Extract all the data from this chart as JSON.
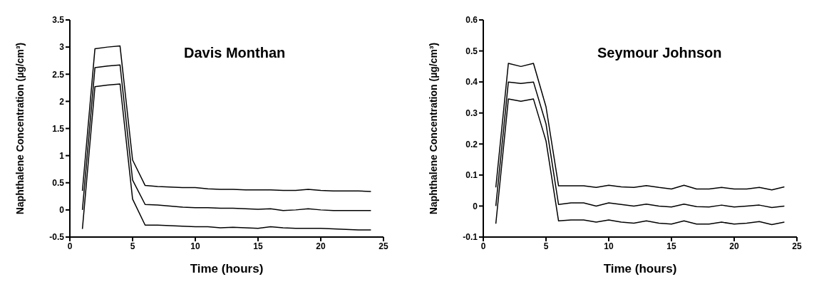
{
  "chart_data": [
    {
      "type": "line",
      "title": "Davis Monthan",
      "xlabel": "Time (hours)",
      "ylabel": "Naphthalene Concentration (µg/cm³)",
      "x": [
        1,
        2,
        3,
        4,
        5,
        6,
        7,
        8,
        9,
        10,
        11,
        12,
        13,
        14,
        15,
        16,
        17,
        18,
        19,
        20,
        21,
        22,
        23,
        24
      ],
      "xlim": [
        0,
        25
      ],
      "xticks": [
        0,
        5,
        10,
        15,
        20,
        25
      ],
      "ylim": [
        -0.5,
        3.5
      ],
      "yticks": [
        -0.5,
        0,
        0.5,
        1,
        1.5,
        2,
        2.5,
        3,
        3.5
      ],
      "grid": false,
      "marker": "none",
      "line_style": "solid",
      "series": [
        {
          "color": "#000000",
          "values": [
            0.35,
            2.97,
            3.0,
            3.02,
            0.92,
            0.45,
            0.43,
            0.42,
            0.41,
            0.41,
            0.39,
            0.38,
            0.38,
            0.37,
            0.37,
            0.37,
            0.36,
            0.36,
            0.38,
            0.36,
            0.35,
            0.35,
            0.35,
            0.34
          ]
        },
        {
          "color": "#000000",
          "values": [
            0.0,
            2.62,
            2.65,
            2.67,
            0.55,
            0.1,
            0.09,
            0.07,
            0.05,
            0.04,
            0.04,
            0.03,
            0.03,
            0.02,
            0.01,
            0.02,
            -0.01,
            0.0,
            0.02,
            0.0,
            -0.01,
            -0.01,
            -0.01,
            -0.01
          ]
        },
        {
          "color": "#000000",
          "values": [
            -0.35,
            2.27,
            2.3,
            2.32,
            0.2,
            -0.28,
            -0.28,
            -0.29,
            -0.3,
            -0.31,
            -0.31,
            -0.33,
            -0.32,
            -0.33,
            -0.34,
            -0.31,
            -0.33,
            -0.34,
            -0.34,
            -0.34,
            -0.35,
            -0.36,
            -0.37,
            -0.37
          ]
        }
      ]
    },
    {
      "type": "line",
      "title": "Seymour Johnson",
      "xlabel": "Time (hours)",
      "ylabel": "Naphthalene Concentration (µg/cm³)",
      "x": [
        1,
        2,
        3,
        4,
        5,
        6,
        7,
        8,
        9,
        10,
        11,
        12,
        13,
        14,
        15,
        16,
        17,
        18,
        19,
        20,
        21,
        22,
        23,
        24
      ],
      "xlim": [
        0,
        25
      ],
      "xticks": [
        0,
        5,
        10,
        15,
        20,
        25
      ],
      "ylim": [
        -0.1,
        0.6
      ],
      "yticks": [
        -0.1,
        0,
        0.1,
        0.2,
        0.3,
        0.4,
        0.5,
        0.6
      ],
      "grid": false,
      "marker": "none",
      "line_style": "solid",
      "series": [
        {
          "color": "#000000",
          "values": [
            0.06,
            0.46,
            0.45,
            0.46,
            0.32,
            0.065,
            0.065,
            0.065,
            0.06,
            0.067,
            0.062,
            0.06,
            0.066,
            0.06,
            0.055,
            0.067,
            0.055,
            0.055,
            0.06,
            0.055,
            0.055,
            0.06,
            0.052,
            0.062
          ]
        },
        {
          "color": "#000000",
          "values": [
            0.0,
            0.4,
            0.395,
            0.4,
            0.265,
            0.005,
            0.01,
            0.01,
            0.0,
            0.01,
            0.005,
            0.0,
            0.006,
            0.0,
            -0.003,
            0.006,
            -0.002,
            -0.003,
            0.003,
            -0.003,
            0.0,
            0.003,
            -0.005,
            0.0
          ]
        },
        {
          "color": "#000000",
          "values": [
            -0.057,
            0.345,
            0.338,
            0.345,
            0.21,
            -0.048,
            -0.045,
            -0.045,
            -0.052,
            -0.045,
            -0.052,
            -0.055,
            -0.048,
            -0.055,
            -0.058,
            -0.048,
            -0.058,
            -0.058,
            -0.052,
            -0.058,
            -0.055,
            -0.05,
            -0.06,
            -0.052
          ]
        }
      ]
    }
  ]
}
